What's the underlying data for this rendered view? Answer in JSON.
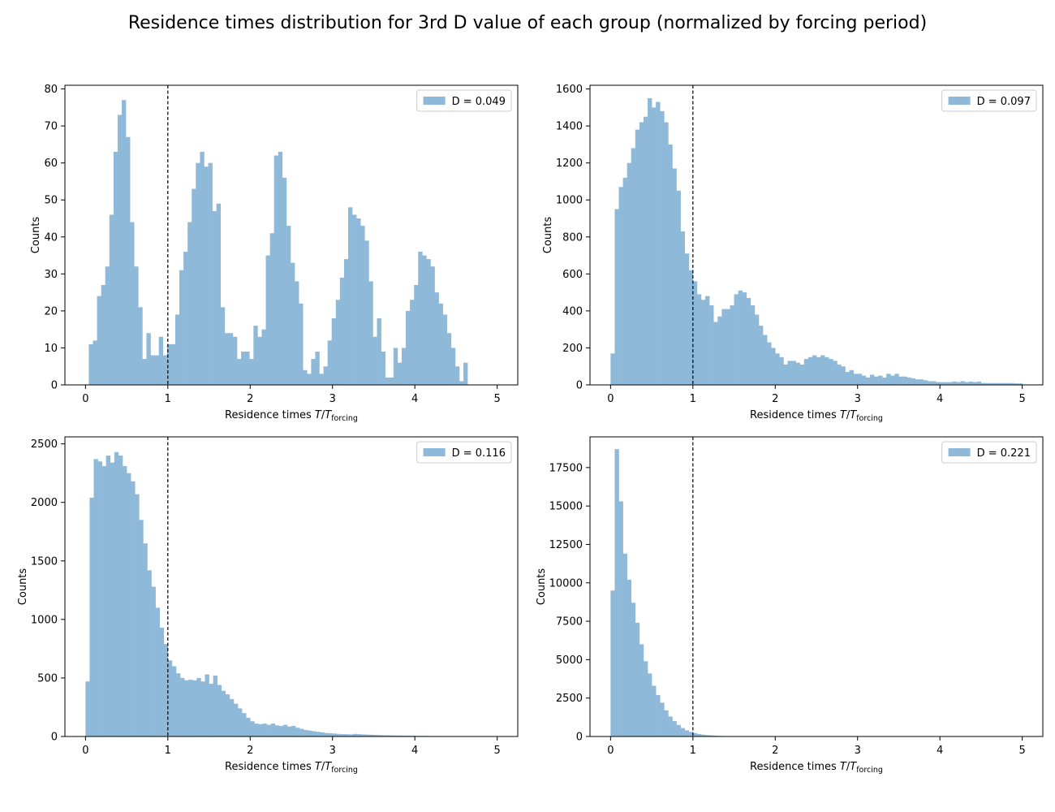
{
  "figure": {
    "title": "Residence times distribution for 3rd D value of each group (normalized by forcing period)"
  },
  "style": {
    "bar_color": "#8fb9d9",
    "legend_patch_color": "#8fb9d9",
    "reference_line_color": "#000000"
  },
  "chart_data": [
    {
      "type": "bar",
      "title": "",
      "xlabel": "Residence times T/T_forcing",
      "ylabel": "Counts",
      "legend": {
        "label": "D = 0.049",
        "location": "top-right"
      },
      "reference_line": {
        "x": 1,
        "style": "dashed"
      },
      "xlim": [
        -0.25,
        5.25
      ],
      "ylim": [
        0,
        81
      ],
      "xticks": [
        0,
        1,
        2,
        3,
        4,
        5
      ],
      "yticks": [
        0,
        10,
        20,
        30,
        40,
        50,
        60,
        70,
        80
      ],
      "bins": {
        "start": 0.04,
        "width": 0.05
      },
      "values": [
        11,
        12,
        24,
        27,
        32,
        46,
        63,
        73,
        77,
        67,
        44,
        32,
        21,
        7,
        14,
        8,
        8,
        13,
        8,
        11,
        11,
        19,
        31,
        36,
        44,
        53,
        60,
        63,
        59,
        60,
        47,
        49,
        21,
        14,
        14,
        13,
        7,
        9,
        9,
        7,
        16,
        13,
        15,
        35,
        41,
        62,
        63,
        56,
        43,
        33,
        28,
        22,
        4,
        3,
        7,
        9,
        3,
        5,
        12,
        18,
        23,
        29,
        34,
        48,
        46,
        45,
        43,
        39,
        28,
        13,
        18,
        9,
        2,
        2,
        10,
        6,
        10,
        20,
        23,
        27,
        36,
        35,
        34,
        32,
        25,
        22,
        19,
        14,
        10,
        5,
        1,
        6
      ]
    },
    {
      "type": "bar",
      "title": "",
      "xlabel": "Residence times T/T_forcing",
      "ylabel": "Counts",
      "legend": {
        "label": "D = 0.097",
        "location": "top-right"
      },
      "reference_line": {
        "x": 1,
        "style": "dashed"
      },
      "xlim": [
        -0.25,
        5.25
      ],
      "ylim": [
        0,
        1620
      ],
      "xticks": [
        0,
        1,
        2,
        3,
        4,
        5
      ],
      "yticks": [
        0,
        200,
        400,
        600,
        800,
        1000,
        1200,
        1400,
        1600
      ],
      "bins": {
        "start": 0,
        "width": 0.05
      },
      "values": [
        170,
        950,
        1070,
        1120,
        1200,
        1280,
        1380,
        1420,
        1450,
        1550,
        1500,
        1530,
        1480,
        1420,
        1300,
        1170,
        1050,
        830,
        710,
        620,
        560,
        490,
        460,
        480,
        430,
        340,
        370,
        410,
        410,
        430,
        490,
        510,
        500,
        470,
        430,
        380,
        320,
        270,
        230,
        200,
        170,
        150,
        110,
        130,
        130,
        120,
        110,
        140,
        150,
        160,
        150,
        160,
        150,
        140,
        130,
        110,
        100,
        70,
        80,
        60,
        60,
        50,
        40,
        55,
        45,
        50,
        40,
        60,
        50,
        60,
        45,
        45,
        40,
        35,
        30,
        30,
        25,
        20,
        20,
        15,
        15,
        15,
        15,
        18,
        15,
        20,
        15,
        18,
        15,
        18,
        10,
        10,
        10,
        10,
        10,
        10,
        10,
        10,
        8,
        8
      ]
    },
    {
      "type": "bar",
      "title": "",
      "xlabel": "Residence times T/T_forcing",
      "ylabel": "Counts",
      "legend": {
        "label": "D = 0.116",
        "location": "top-right"
      },
      "reference_line": {
        "x": 1,
        "style": "dashed"
      },
      "xlim": [
        -0.25,
        5.25
      ],
      "ylim": [
        0,
        2560
      ],
      "xticks": [
        0,
        1,
        2,
        3,
        4,
        5
      ],
      "yticks": [
        0,
        500,
        1000,
        1500,
        2000,
        2500
      ],
      "bins": {
        "start": 0,
        "width": 0.05
      },
      "values": [
        470,
        2040,
        2370,
        2350,
        2310,
        2400,
        2340,
        2430,
        2400,
        2310,
        2250,
        2180,
        2070,
        1850,
        1650,
        1420,
        1280,
        1100,
        930,
        790,
        650,
        600,
        540,
        500,
        480,
        485,
        480,
        500,
        470,
        530,
        450,
        520,
        440,
        390,
        360,
        320,
        280,
        240,
        200,
        160,
        130,
        110,
        105,
        110,
        100,
        110,
        95,
        90,
        100,
        85,
        90,
        75,
        65,
        55,
        50,
        45,
        40,
        35,
        30,
        28,
        25,
        22,
        20,
        20,
        18,
        22,
        20,
        18,
        16,
        15,
        14,
        12,
        10,
        10,
        9,
        8,
        8,
        7,
        6,
        6,
        5,
        5,
        5,
        4,
        4,
        4,
        3,
        3,
        3,
        3,
        2,
        2,
        2,
        2,
        2,
        2,
        1,
        1,
        1,
        1
      ]
    },
    {
      "type": "bar",
      "title": "",
      "xlabel": "Residence times T/T_forcing",
      "ylabel": "Counts",
      "legend": {
        "label": "D = 0.221",
        "location": "top-right"
      },
      "reference_line": {
        "x": 1,
        "style": "dashed"
      },
      "xlim": [
        -0.25,
        5.25
      ],
      "ylim": [
        0,
        19500
      ],
      "xticks": [
        0,
        1,
        2,
        3,
        4,
        5
      ],
      "yticks": [
        0,
        2500,
        5000,
        7500,
        10000,
        12500,
        15000,
        17500
      ],
      "bins": {
        "start": 0,
        "width": 0.05
      },
      "values": [
        9500,
        18700,
        15300,
        11900,
        10200,
        8700,
        7400,
        6000,
        4900,
        4100,
        3300,
        2700,
        2200,
        1700,
        1300,
        1000,
        750,
        550,
        400,
        300,
        220,
        160,
        120,
        90,
        70,
        50,
        38,
        30,
        22,
        16,
        12,
        9,
        7,
        5,
        4,
        3,
        2,
        2,
        1,
        1,
        1,
        1,
        0,
        0,
        0,
        0,
        0,
        0,
        0,
        0,
        0,
        0,
        0,
        0,
        0,
        0,
        0,
        0,
        0,
        0,
        0,
        0,
        0,
        0,
        0,
        0,
        0,
        0,
        0,
        0,
        0,
        0,
        0,
        0,
        0,
        0,
        0,
        0,
        0,
        0,
        0,
        0,
        0,
        0,
        0,
        0,
        0,
        0,
        0,
        0,
        0,
        0,
        0,
        0,
        0,
        0,
        0,
        0,
        0,
        0
      ]
    }
  ]
}
